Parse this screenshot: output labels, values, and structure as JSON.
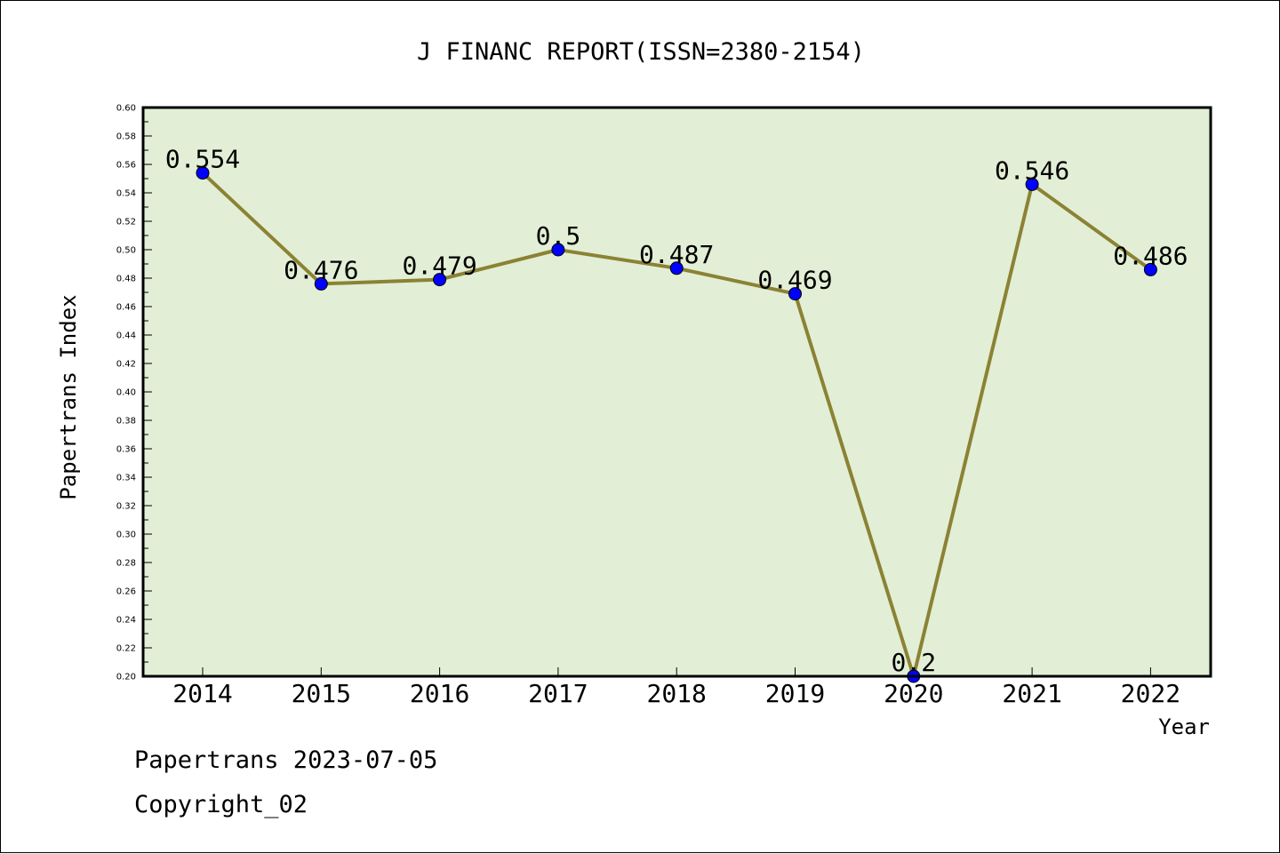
{
  "chart_data": {
    "type": "line",
    "title": "J FINANC REPORT(ISSN=2380-2154)",
    "xlabel": "Year",
    "ylabel": "Papertrans Index",
    "categories": [
      "2014",
      "2015",
      "2016",
      "2017",
      "2018",
      "2019",
      "2020",
      "2021",
      "2022"
    ],
    "values": [
      0.554,
      0.476,
      0.479,
      0.5,
      0.487,
      0.469,
      0.2,
      0.546,
      0.486
    ],
    "data_labels": [
      "0.554",
      "0.476",
      "0.479",
      "0.5",
      "0.487",
      "0.469",
      "0.2",
      "0.546",
      "0.486"
    ],
    "ylim": [
      0.2,
      0.6
    ],
    "yticks": [
      "0.20",
      "0.22",
      "0.24",
      "0.26",
      "0.28",
      "0.30",
      "0.32",
      "0.34",
      "0.36",
      "0.38",
      "0.40",
      "0.42",
      "0.44",
      "0.46",
      "0.48",
      "0.50",
      "0.52",
      "0.54",
      "0.56",
      "0.58",
      "0.60"
    ],
    "grid": false,
    "legend": "none",
    "colors": {
      "plot_background": "#e2efd6",
      "line": "#8b8234",
      "marker": "#0000ff"
    }
  },
  "footer": {
    "line1": "Papertrans 2023-07-05",
    "line2": "Copyright_02"
  }
}
